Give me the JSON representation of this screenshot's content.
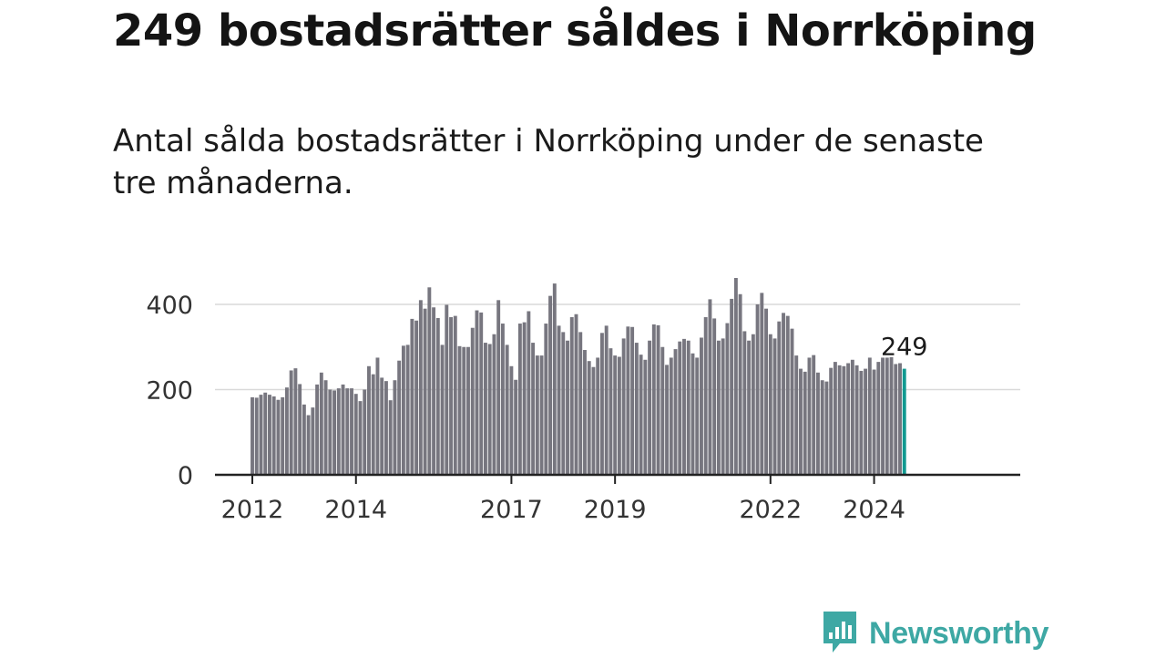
{
  "header": {
    "title": "249 bostadsrätter såldes i Norrköping",
    "subtitle": "Antal sålda bostadsrätter i Norrköping under de senaste tre månaderna."
  },
  "brand": {
    "name": "Newsworthy",
    "logo_icon": "bar-chart-speech-bubble-icon",
    "color": "#3ea8a4"
  },
  "colors": {
    "bar": "#77767f",
    "highlight": "#119a91",
    "grid": "#d9d9d9",
    "axis": "#222222"
  },
  "chart_data": {
    "type": "bar",
    "x_unit": "month",
    "start": "2012-01",
    "x_tick_labels": [
      "2012",
      "2014",
      "2017",
      "2019",
      "2022",
      "2024"
    ],
    "y_ticks": [
      0,
      200,
      400
    ],
    "ylim": [
      0,
      480
    ],
    "grid": true,
    "highlight_last": true,
    "last_value_label": "249",
    "values": [
      182,
      181,
      188,
      193,
      188,
      184,
      176,
      182,
      205,
      245,
      250,
      213,
      165,
      140,
      158,
      212,
      240,
      222,
      200,
      198,
      203,
      212,
      203,
      203,
      190,
      173,
      200,
      255,
      236,
      275,
      228,
      220,
      175,
      222,
      268,
      303,
      305,
      366,
      362,
      410,
      390,
      440,
      393,
      368,
      305,
      399,
      370,
      373,
      302,
      300,
      300,
      345,
      386,
      381,
      310,
      307,
      330,
      410,
      355,
      305,
      255,
      223,
      355,
      358,
      384,
      310,
      280,
      280,
      355,
      420,
      449,
      350,
      335,
      315,
      370,
      377,
      335,
      293,
      267,
      253,
      275,
      333,
      350,
      297,
      280,
      277,
      320,
      348,
      347,
      310,
      282,
      270,
      315,
      353,
      351,
      300,
      258,
      275,
      295,
      313,
      319,
      315,
      285,
      275,
      322,
      370,
      412,
      367,
      315,
      320,
      356,
      413,
      462,
      424,
      337,
      315,
      330,
      400,
      427,
      390,
      330,
      320,
      360,
      380,
      373,
      343,
      280,
      249,
      242,
      275,
      281,
      240,
      222,
      219,
      251,
      265,
      257,
      255,
      262,
      270,
      257,
      244,
      249,
      275,
      247,
      265,
      275,
      275,
      276,
      260,
      262,
      249
    ]
  }
}
